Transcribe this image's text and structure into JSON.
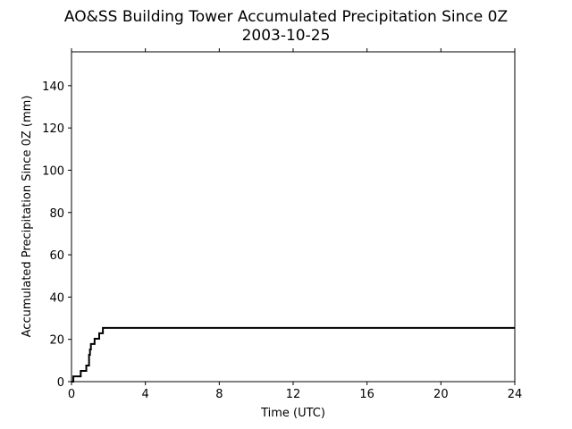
{
  "chart_data": {
    "type": "line",
    "title": "AO&SS Building Tower Accumulated Precipitation Since 0Z",
    "subtitle": "2003-10-25",
    "xlabel": "Time (UTC)",
    "ylabel": "Accumulated Precipitation Since 0Z (mm)",
    "xlim": [
      0,
      24
    ],
    "ylim": [
      0,
      156
    ],
    "xticks": [
      0,
      4,
      8,
      12,
      16,
      20,
      24
    ],
    "yticks": [
      0,
      20,
      40,
      60,
      80,
      100,
      120,
      140
    ],
    "grid": false,
    "line_color": "#000000",
    "series": [
      {
        "step": true,
        "x": [
          0,
          0.1,
          0.5,
          0.8,
          0.95,
          1.0,
          1.05,
          1.1,
          1.25,
          1.5,
          1.7,
          24
        ],
        "y": [
          0,
          2.5,
          5.1,
          7.6,
          12.7,
          15.2,
          17.8,
          17.8,
          20.3,
          22.9,
          25.4,
          25.4
        ]
      }
    ]
  }
}
